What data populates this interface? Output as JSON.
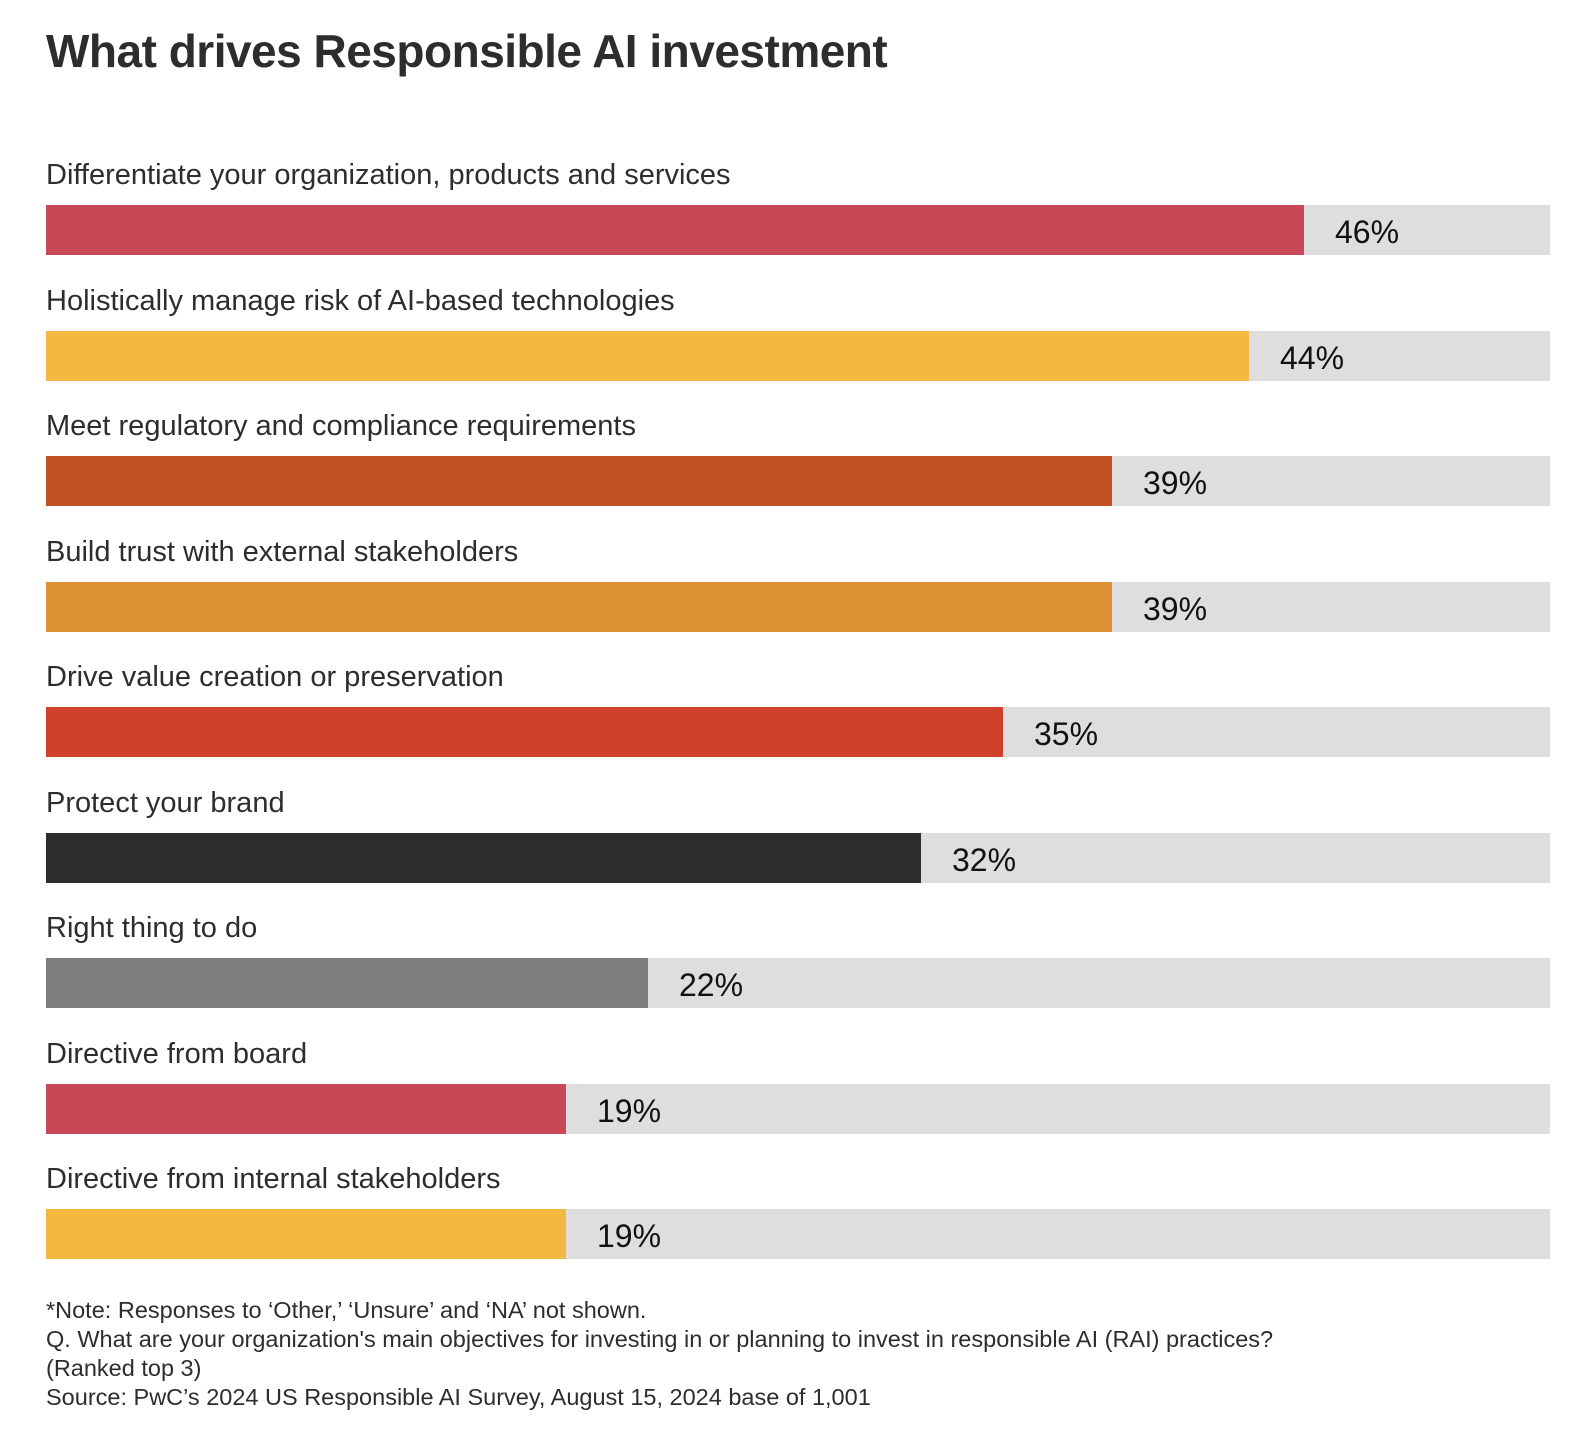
{
  "title": "What drives Responsible AI investment",
  "chart_data": {
    "type": "bar",
    "orientation": "horizontal",
    "title": "What drives Responsible AI investment",
    "categories": [
      "Differentiate your organization, products and services",
      "Holistically manage risk of AI-based technologies",
      "Meet regulatory and compliance requirements",
      "Build trust with external stakeholders",
      "Drive value creation or preservation",
      "Protect your brand",
      "Right thing to do",
      "Directive from board",
      "Directive from internal stakeholders"
    ],
    "values": [
      46,
      44,
      39,
      39,
      35,
      32,
      22,
      19,
      19
    ],
    "value_labels": [
      "46%",
      "44%",
      "39%",
      "39%",
      "35%",
      "32%",
      "22%",
      "19%",
      "19%"
    ],
    "colors": [
      "#c84858",
      "#f2b840",
      "#c25223",
      "#dd9134",
      "#cf402c",
      "#2d2d2d",
      "#7d7d7d",
      "#c84858",
      "#f2b840"
    ],
    "track_color": "#dedede",
    "xlim": [
      0,
      55
    ],
    "unit": "%",
    "grid": false
  },
  "notes": {
    "note": "*Note: Responses to ‘Other,’ ‘Unsure’ and ‘NA’ not shown.",
    "question": "Q. What are your organization's main objectives for investing in or planning to invest in responsible AI (RAI) practices?",
    "ranked": "(Ranked top 3)",
    "source": "Source: PwC’s 2024 US Responsible AI Survey, August 15, 2024 base of 1,001"
  }
}
